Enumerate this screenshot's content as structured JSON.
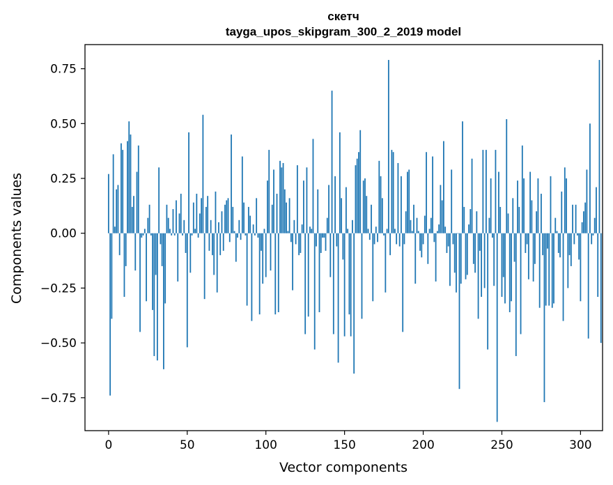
{
  "chart_data": {
    "type": "bar",
    "title": "скетч",
    "subtitle": "tayga_upos_skipgram_300_2_2019 model",
    "xlabel": "Vector components",
    "ylabel": "Components values",
    "xlim": [
      -15,
      314
    ],
    "ylim": [
      -0.9,
      0.86
    ],
    "xticks": [
      0,
      50,
      100,
      150,
      200,
      250,
      300
    ],
    "xtick_labels": [
      "0",
      "50",
      "100",
      "150",
      "200",
      "250",
      "300"
    ],
    "yticks": [
      -0.75,
      -0.5,
      -0.25,
      0.0,
      0.25,
      0.5,
      0.75
    ],
    "ytick_labels": [
      "−0.75",
      "−0.50",
      "−0.25",
      "0.00",
      "0.25",
      "0.50",
      "0.75"
    ],
    "bar_color": "#1f77b4",
    "grid": false,
    "legend": "none",
    "series": [
      {
        "values": [
          0.27,
          -0.74,
          -0.39,
          0.36,
          0.03,
          0.2,
          0.22,
          -0.1,
          0.41,
          0.38,
          -0.29,
          -0.15,
          0.42,
          0.51,
          0.45,
          0.12,
          0.17,
          -0.17,
          0.28,
          0.4,
          -0.45,
          -0.02,
          -0.01,
          0.02,
          -0.31,
          0.07,
          0.13,
          -0.01,
          -0.35,
          -0.56,
          -0.19,
          -0.58,
          0.3,
          -0.05,
          -0.15,
          -0.62,
          -0.32,
          0.13,
          0.07,
          0.02,
          -0.01,
          0.11,
          -0.01,
          0.15,
          -0.22,
          0.09,
          0.18,
          -0.01,
          0.06,
          -0.09,
          -0.52,
          0.46,
          -0.18,
          -0.01,
          0.14,
          0.02,
          0.18,
          -0.02,
          0.09,
          0.16,
          0.54,
          -0.3,
          0.12,
          0.17,
          -0.08,
          0.06,
          -0.1,
          -0.19,
          0.19,
          -0.27,
          0.05,
          -0.1,
          0.1,
          -0.08,
          0.13,
          0.15,
          0.16,
          -0.04,
          0.45,
          0.12,
          0.01,
          -0.13,
          -0.02,
          0.06,
          -0.03,
          0.35,
          0.14,
          -0.01,
          -0.33,
          0.12,
          0.08,
          -0.4,
          0.04,
          -0.01,
          0.16,
          -0.02,
          -0.37,
          -0.08,
          -0.23,
          0.02,
          -0.2,
          0.24,
          0.38,
          -0.17,
          0.13,
          0.29,
          -0.37,
          0.18,
          -0.36,
          0.33,
          0.3,
          0.32,
          0.2,
          0.14,
          0.01,
          0.16,
          -0.04,
          -0.26,
          0.06,
          -0.05,
          0.31,
          -0.1,
          -0.09,
          0.04,
          0.24,
          -0.46,
          0.3,
          -0.38,
          0.03,
          0.02,
          0.43,
          -0.53,
          -0.06,
          0.2,
          -0.36,
          -0.09,
          -0.02,
          -0.02,
          -0.08,
          0.07,
          0.22,
          -0.2,
          0.65,
          -0.46,
          0.26,
          -0.06,
          -0.59,
          0.46,
          0.16,
          -0.12,
          -0.47,
          0.21,
          0.02,
          -0.37,
          -0.47,
          0.06,
          -0.64,
          0.31,
          0.34,
          0.37,
          0.47,
          -0.39,
          0.24,
          0.25,
          0.17,
          0.02,
          -0.03,
          0.13,
          -0.31,
          -0.05,
          0.03,
          -0.04,
          0.33,
          0.26,
          0.16,
          -0.01,
          -0.27,
          0.02,
          0.79,
          -0.1,
          0.38,
          0.37,
          0.02,
          -0.05,
          0.32,
          -0.06,
          0.26,
          -0.45,
          -0.05,
          0.1,
          0.28,
          0.29,
          0.06,
          0.01,
          0.13,
          -0.23,
          0.07,
          0.01,
          -0.08,
          -0.11,
          -0.05,
          0.08,
          0.37,
          -0.14,
          0.02,
          0.07,
          0.35,
          -0.04,
          -0.22,
          0.01,
          0.04,
          0.22,
          0.15,
          0.42,
          0.03,
          -0.09,
          -0.06,
          -0.24,
          0.29,
          -0.05,
          -0.18,
          -0.27,
          0.0,
          -0.71,
          -0.23,
          0.51,
          0.12,
          -0.21,
          -0.19,
          0.04,
          0.11,
          0.34,
          -0.14,
          -0.18,
          0.1,
          -0.39,
          -0.08,
          -0.29,
          0.38,
          -0.25,
          0.38,
          -0.53,
          0.07,
          0.25,
          -0.02,
          -0.24,
          0.38,
          -0.86,
          0.28,
          0.12,
          -0.29,
          -0.2,
          -0.32,
          0.52,
          0.09,
          -0.36,
          -0.31,
          0.16,
          -0.13,
          -0.56,
          0.24,
          0.12,
          -0.46,
          0.4,
          0.25,
          -0.09,
          -0.05,
          -0.21,
          0.28,
          0.15,
          -0.22,
          -0.14,
          0.1,
          0.25,
          -0.34,
          0.18,
          -0.1,
          -0.77,
          -0.33,
          -0.07,
          -0.33,
          0.26,
          -0.34,
          -0.32,
          0.07,
          0.01,
          -0.09,
          -0.11,
          0.19,
          -0.4,
          0.3,
          0.25,
          -0.25,
          -0.1,
          -0.15,
          0.13,
          -0.05,
          0.13,
          -0.01,
          -0.12,
          -0.31,
          0.05,
          0.1,
          0.14,
          0.29,
          -0.48,
          0.5,
          -0.05,
          -0.01,
          0.07,
          0.21,
          -0.29,
          0.79,
          -0.5
        ]
      }
    ]
  }
}
